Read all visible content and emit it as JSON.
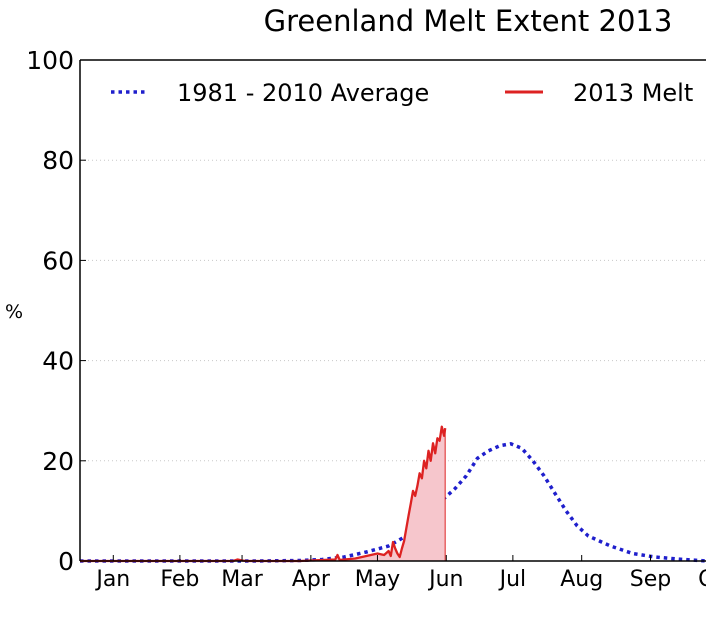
{
  "chart_data": {
    "type": "line",
    "title": "Greenland Melt Extent 2013",
    "xlabel": "",
    "ylabel": "%",
    "ylim": [
      0,
      100
    ],
    "yticks": [
      0,
      20,
      40,
      60,
      80,
      100
    ],
    "xlim_days": [
      1,
      283
    ],
    "x_unit": "day of year",
    "month_ticks": [
      {
        "label": "Jan",
        "day": 16
      },
      {
        "label": "Feb",
        "day": 46
      },
      {
        "label": "Mar",
        "day": 74
      },
      {
        "label": "Apr",
        "day": 105
      },
      {
        "label": "May",
        "day": 135
      },
      {
        "label": "Jun",
        "day": 166
      },
      {
        "label": "Jul",
        "day": 196
      },
      {
        "label": "Aug",
        "day": 227
      },
      {
        "label": "Sep",
        "day": 258
      },
      {
        "label": "Oct",
        "day": 288
      }
    ],
    "grid": true,
    "grid_axis": "y",
    "legend_position": "top",
    "series": [
      {
        "name": "1981 - 2010 Average",
        "style": "dotted",
        "color": "#1f1fcc",
        "x": [
          1,
          80,
          100,
          110,
          120,
          130,
          140,
          150,
          155,
          160,
          165,
          170,
          175,
          180,
          185,
          190,
          195,
          200,
          205,
          210,
          215,
          220,
          225,
          230,
          235,
          240,
          250,
          260,
          270,
          280,
          283
        ],
        "y": [
          0,
          0,
          0.1,
          0.3,
          0.8,
          1.8,
          3.0,
          5.5,
          8.0,
          10.5,
          12.5,
          14.5,
          17.0,
          20.5,
          22.0,
          23.0,
          23.4,
          22.5,
          20.0,
          17.0,
          13.5,
          10.0,
          7.0,
          5.0,
          4.0,
          3.0,
          1.5,
          0.8,
          0.4,
          0.1,
          0
        ]
      },
      {
        "name": "2013 Melt",
        "style": "solid",
        "fill": true,
        "color": "#dd2222",
        "fill_color": "#f6c6cc",
        "x": [
          1,
          60,
          70,
          72,
          74,
          76,
          90,
          100,
          110,
          116,
          117,
          118,
          120,
          125,
          130,
          135,
          138,
          140,
          141,
          142,
          143,
          144,
          145,
          146,
          147,
          148,
          149,
          150,
          151,
          152,
          153,
          154,
          155,
          156,
          157,
          158,
          159,
          160,
          161,
          162,
          163,
          164,
          165,
          165.5
        ],
        "y": [
          0,
          0,
          0,
          0.3,
          0.1,
          0,
          0,
          0,
          0.2,
          0.3,
          1.2,
          0.2,
          0.3,
          0.5,
          1.0,
          1.5,
          1.2,
          2.0,
          1.0,
          3.8,
          2.5,
          1.5,
          0.8,
          2.5,
          4.0,
          6.5,
          9.0,
          11.5,
          14.0,
          13.0,
          15.0,
          17.5,
          16.5,
          20.0,
          18.5,
          22.0,
          20.0,
          23.5,
          21.5,
          24.5,
          24.0,
          26.8,
          25.0,
          26.5
        ]
      }
    ]
  }
}
